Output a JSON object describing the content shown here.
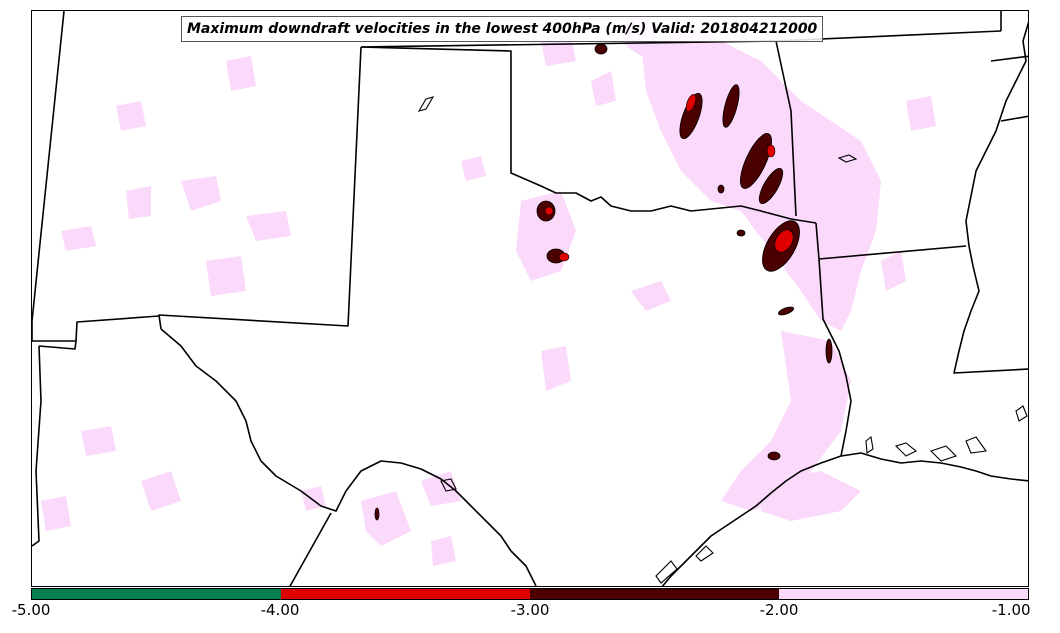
{
  "title": "Maximum downdraft velocities in the lowest 400hPa (m/s) Valid: 201804212000",
  "legend": {
    "ticks": [
      "-5.00",
      "-4.00",
      "-3.00",
      "-2.00",
      "-1.00"
    ],
    "bins": [
      {
        "range": [
          -5,
          -4
        ],
        "color": "#00804f"
      },
      {
        "range": [
          -4,
          -3
        ],
        "color": "#e00000"
      },
      {
        "range": [
          -3,
          -2
        ],
        "color": "#4a0000"
      },
      {
        "range": [
          -2,
          -1
        ],
        "color": "#fbd9fb"
      }
    ]
  },
  "colors": {
    "boundary": "#000000",
    "light_shade": "#fbd9fb",
    "medium_shade": "#e00000",
    "dark_shade": "#4a0000"
  }
}
